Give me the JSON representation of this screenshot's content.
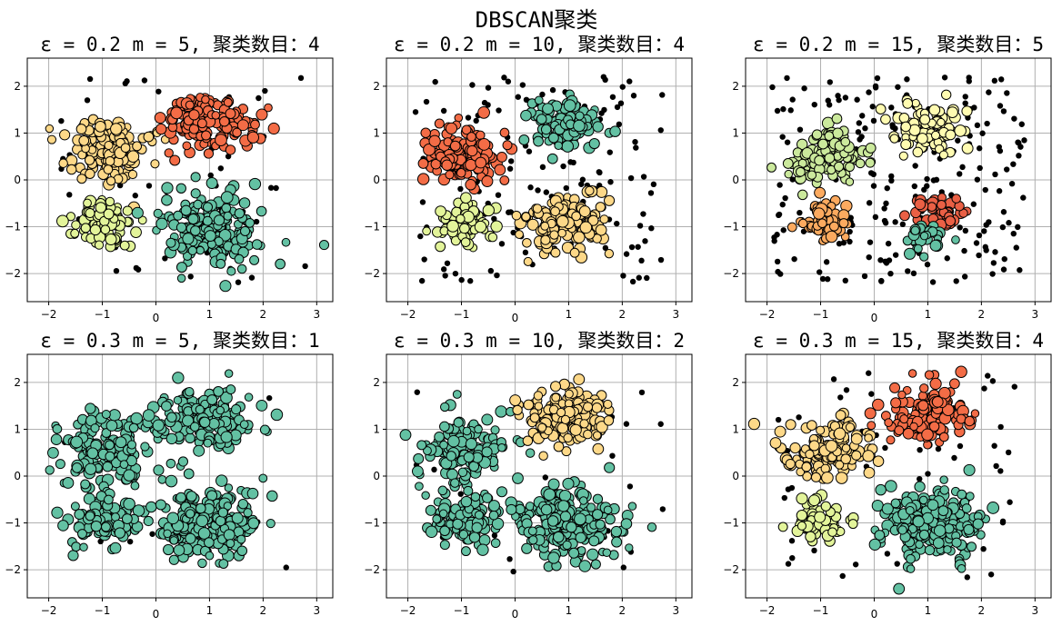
{
  "figure": {
    "suptitle": "DBSCAN聚类"
  },
  "chart_data": [
    {
      "type": "scatter",
      "title": "ε = 0.2  m = 5, 聚类数目：4",
      "xlim": [
        -2.4,
        3.3
      ],
      "ylim": [
        -2.6,
        2.6
      ],
      "xticks": [
        -2,
        -1,
        0,
        1,
        2,
        3
      ],
      "yticks": [
        -2,
        -1,
        0,
        1,
        2
      ],
      "grid": true,
      "clusters": [
        {
          "center": [
            -0.9,
            0.6
          ],
          "spread": [
            0.38,
            0.34
          ],
          "count": 150,
          "color": "#fdd888"
        },
        {
          "center": [
            0.95,
            1.25
          ],
          "spread": [
            0.42,
            0.3
          ],
          "count": 150,
          "color": "#f36c46"
        },
        {
          "center": [
            -1.0,
            -0.9
          ],
          "spread": [
            0.3,
            0.25
          ],
          "count": 90,
          "color": "#e3f49a"
        },
        {
          "center": [
            1.0,
            -1.0
          ],
          "spread": [
            0.45,
            0.38
          ],
          "count": 200,
          "color": "#63c1a3"
        }
      ],
      "noise_count": 55
    },
    {
      "type": "scatter",
      "title": "ε = 0.2  m = 10, 聚类数目：4",
      "xlim": [
        -2.4,
        3.3
      ],
      "ylim": [
        -2.6,
        2.6
      ],
      "xticks": [
        -2,
        -1,
        0,
        1,
        2,
        3
      ],
      "yticks": [
        -2,
        -1,
        0,
        1,
        2
      ],
      "grid": true,
      "clusters": [
        {
          "center": [
            -0.95,
            0.5
          ],
          "spread": [
            0.35,
            0.3
          ],
          "count": 130,
          "color": "#f36c46"
        },
        {
          "center": [
            0.9,
            1.2
          ],
          "spread": [
            0.35,
            0.27
          ],
          "count": 110,
          "color": "#63c1a3"
        },
        {
          "center": [
            -1.0,
            -0.95
          ],
          "spread": [
            0.26,
            0.22
          ],
          "count": 70,
          "color": "#e3f49a"
        },
        {
          "center": [
            1.0,
            -0.9
          ],
          "spread": [
            0.38,
            0.3
          ],
          "count": 140,
          "color": "#fdd888"
        }
      ],
      "noise_count": 150
    },
    {
      "type": "scatter",
      "title": "ε = 0.2  m = 15, 聚类数目：5",
      "xlim": [
        -2.4,
        3.3
      ],
      "ylim": [
        -2.6,
        2.6
      ],
      "xticks": [
        -2,
        -1,
        0,
        1,
        2,
        3
      ],
      "yticks": [
        -2,
        -1,
        0,
        1,
        2
      ],
      "grid": true,
      "clusters": [
        {
          "center": [
            -0.9,
            0.5
          ],
          "spread": [
            0.32,
            0.27
          ],
          "count": 110,
          "color": "#cbe99c"
        },
        {
          "center": [
            1.0,
            1.15
          ],
          "spread": [
            0.35,
            0.25
          ],
          "count": 100,
          "color": "#fffbb1"
        },
        {
          "center": [
            -0.9,
            -0.9
          ],
          "spread": [
            0.22,
            0.22
          ],
          "count": 55,
          "color": "#fcaa5f"
        },
        {
          "center": [
            1.2,
            -0.65
          ],
          "spread": [
            0.25,
            0.2
          ],
          "count": 45,
          "color": "#ea6045"
        },
        {
          "center": [
            0.95,
            -1.25
          ],
          "spread": [
            0.2,
            0.18
          ],
          "count": 30,
          "color": "#63c1a3"
        }
      ],
      "noise_count": 230
    },
    {
      "type": "scatter",
      "title": "ε = 0.3  m = 5, 聚类数目：1",
      "xlim": [
        -2.4,
        3.3
      ],
      "ylim": [
        -2.6,
        2.6
      ],
      "xticks": [
        -2,
        -1,
        0,
        1,
        2,
        3
      ],
      "yticks": [
        -2,
        -1,
        0,
        1,
        2
      ],
      "grid": true,
      "clusters": [
        {
          "center": [
            -0.95,
            0.6
          ],
          "spread": [
            0.42,
            0.38
          ],
          "count": 150,
          "color": "#63c1a3"
        },
        {
          "center": [
            0.9,
            1.25
          ],
          "spread": [
            0.45,
            0.32
          ],
          "count": 150,
          "color": "#63c1a3"
        },
        {
          "center": [
            -1.0,
            -0.95
          ],
          "spread": [
            0.35,
            0.3
          ],
          "count": 100,
          "color": "#63c1a3"
        },
        {
          "center": [
            1.0,
            -1.0
          ],
          "spread": [
            0.5,
            0.4
          ],
          "count": 200,
          "color": "#63c1a3"
        }
      ],
      "noise_count": 10
    },
    {
      "type": "scatter",
      "title": "ε = 0.3  m = 10, 聚类数目：2",
      "xlim": [
        -2.4,
        3.3
      ],
      "ylim": [
        -2.6,
        2.6
      ],
      "xticks": [
        -2,
        -1,
        0,
        1,
        2,
        3
      ],
      "yticks": [
        -2,
        -1,
        0,
        1,
        2
      ],
      "grid": true,
      "clusters": [
        {
          "center": [
            -0.95,
            0.55
          ],
          "spread": [
            0.4,
            0.35
          ],
          "count": 150,
          "color": "#63c1a3"
        },
        {
          "center": [
            0.9,
            1.25
          ],
          "spread": [
            0.45,
            0.32
          ],
          "count": 160,
          "color": "#fdd888"
        },
        {
          "center": [
            -1.0,
            -0.95
          ],
          "spread": [
            0.33,
            0.28
          ],
          "count": 100,
          "color": "#63c1a3"
        },
        {
          "center": [
            1.0,
            -1.0
          ],
          "spread": [
            0.48,
            0.38
          ],
          "count": 200,
          "color": "#63c1a3"
        }
      ],
      "noise_count": 30
    },
    {
      "type": "scatter",
      "title": "ε = 0.3  m = 15, 聚类数目：4",
      "xlim": [
        -2.4,
        3.3
      ],
      "ylim": [
        -2.6,
        2.6
      ],
      "xticks": [
        -2,
        -1,
        0,
        1,
        2,
        3
      ],
      "yticks": [
        -2,
        -1,
        0,
        1,
        2
      ],
      "grid": true,
      "clusters": [
        {
          "center": [
            -0.9,
            0.55
          ],
          "spread": [
            0.38,
            0.33
          ],
          "count": 140,
          "color": "#fdd888"
        },
        {
          "center": [
            1.0,
            1.3
          ],
          "spread": [
            0.42,
            0.3
          ],
          "count": 150,
          "color": "#f36c46"
        },
        {
          "center": [
            -1.0,
            -0.95
          ],
          "spread": [
            0.26,
            0.22
          ],
          "count": 70,
          "color": "#e3f49a"
        },
        {
          "center": [
            1.0,
            -1.0
          ],
          "spread": [
            0.45,
            0.38
          ],
          "count": 200,
          "color": "#63c1a3"
        }
      ],
      "noise_count": 60
    }
  ]
}
